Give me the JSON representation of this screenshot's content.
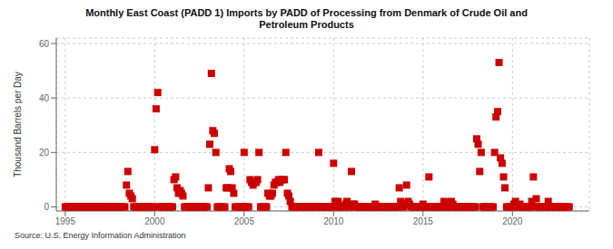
{
  "chart_data": {
    "type": "scatter",
    "title": "Monthly East Coast (PADD 1) Imports by PADD of Processing from Denmark of Crude Oil and\nPetroleum Products",
    "ylabel": "Thousand Barrels per Day",
    "annotation": "Source: U.S. Energy Information Administration",
    "xlim": [
      1994.5,
      2024.3
    ],
    "ylim": [
      -1.5,
      62
    ],
    "yticks": [
      0,
      20,
      40,
      60
    ],
    "xticks": [
      1995,
      2000,
      2005,
      2010,
      2015,
      2020
    ],
    "grid": true,
    "color": "#cc0000",
    "marker": "square",
    "x": [
      1995.0,
      1995.08,
      1995.17,
      1995.25,
      1995.33,
      1995.42,
      1995.5,
      1995.58,
      1995.67,
      1995.75,
      1995.83,
      1995.92,
      1996.0,
      1996.08,
      1996.17,
      1996.25,
      1996.33,
      1996.42,
      1996.5,
      1996.58,
      1996.67,
      1996.75,
      1996.83,
      1996.92,
      1997.0,
      1997.08,
      1997.17,
      1997.25,
      1997.33,
      1997.42,
      1997.5,
      1997.58,
      1997.67,
      1997.75,
      1997.83,
      1997.92,
      1998.0,
      1998.08,
      1998.17,
      1998.25,
      1998.33,
      1998.42,
      1998.5,
      1998.58,
      1998.67,
      1998.75,
      1998.83,
      1998.92,
      1999.0,
      1999.08,
      1999.17,
      1999.25,
      1999.33,
      1999.42,
      1999.5,
      1999.58,
      1999.67,
      1999.75,
      1999.83,
      1999.92,
      2000.0,
      2000.08,
      2000.17,
      2000.25,
      2000.33,
      2000.42,
      2000.5,
      2000.58,
      2000.67,
      2000.75,
      2000.83,
      2000.92,
      2001.0,
      2001.08,
      2001.17,
      2001.25,
      2001.33,
      2001.42,
      2001.5,
      2001.58,
      2001.67,
      2001.75,
      2001.83,
      2001.92,
      2002.0,
      2002.08,
      2002.17,
      2002.25,
      2002.33,
      2002.42,
      2002.5,
      2002.58,
      2002.67,
      2002.75,
      2002.83,
      2002.92,
      2003.0,
      2003.08,
      2003.17,
      2003.25,
      2003.33,
      2003.42,
      2003.5,
      2003.58,
      2003.67,
      2003.75,
      2003.83,
      2003.92,
      2004.0,
      2004.08,
      2004.17,
      2004.25,
      2004.33,
      2004.42,
      2004.5,
      2004.58,
      2004.67,
      2004.75,
      2004.83,
      2004.92,
      2005.0,
      2005.08,
      2005.17,
      2005.25,
      2005.33,
      2005.42,
      2005.5,
      2005.58,
      2005.67,
      2005.75,
      2005.83,
      2005.92,
      2006.0,
      2006.08,
      2006.17,
      2006.25,
      2006.33,
      2006.42,
      2006.5,
      2006.58,
      2006.67,
      2006.75,
      2006.83,
      2006.92,
      2007.0,
      2007.08,
      2007.17,
      2007.25,
      2007.33,
      2007.42,
      2007.5,
      2007.58,
      2007.67,
      2007.75,
      2007.83,
      2007.92,
      2008.0,
      2008.08,
      2008.17,
      2008.25,
      2008.33,
      2008.42,
      2008.5,
      2008.58,
      2008.67,
      2008.75,
      2008.83,
      2008.92,
      2009.0,
      2009.08,
      2009.17,
      2009.25,
      2009.33,
      2009.42,
      2009.5,
      2009.58,
      2009.67,
      2009.75,
      2009.83,
      2009.92,
      2010.0,
      2010.08,
      2010.17,
      2010.25,
      2010.33,
      2010.42,
      2010.5,
      2010.58,
      2010.67,
      2010.75,
      2010.83,
      2010.92,
      2011.0,
      2011.08,
      2011.17,
      2011.25,
      2011.33,
      2011.42,
      2011.5,
      2011.58,
      2011.67,
      2011.75,
      2011.83,
      2011.92,
      2012.0,
      2012.08,
      2012.17,
      2012.25,
      2012.33,
      2012.42,
      2012.5,
      2012.58,
      2012.67,
      2012.75,
      2012.83,
      2012.92,
      2013.0,
      2013.08,
      2013.17,
      2013.25,
      2013.33,
      2013.42,
      2013.5,
      2013.58,
      2013.67,
      2013.75,
      2013.83,
      2013.92,
      2014.0,
      2014.08,
      2014.17,
      2014.25,
      2014.33,
      2014.42,
      2014.5,
      2014.58,
      2014.67,
      2014.75,
      2014.83,
      2014.92,
      2015.0,
      2015.08,
      2015.17,
      2015.25,
      2015.33,
      2015.42,
      2015.5,
      2015.58,
      2015.67,
      2015.75,
      2015.83,
      2015.92,
      2016.0,
      2016.08,
      2016.17,
      2016.25,
      2016.33,
      2016.42,
      2016.5,
      2016.58,
      2016.67,
      2016.75,
      2016.83,
      2016.92,
      2017.0,
      2017.08,
      2017.17,
      2017.25,
      2017.33,
      2017.42,
      2017.5,
      2017.58,
      2017.67,
      2017.75,
      2017.83,
      2017.92,
      2018.0,
      2018.08,
      2018.17,
      2018.25,
      2018.33,
      2018.42,
      2018.5,
      2018.58,
      2018.67,
      2018.75,
      2018.83,
      2018.92,
      2019.0,
      2019.08,
      2019.17,
      2019.25,
      2019.33,
      2019.42,
      2019.5,
      2019.58,
      2019.67,
      2019.75,
      2019.83,
      2019.92,
      2020.0,
      2020.08,
      2020.17,
      2020.25,
      2020.33,
      2020.42,
      2020.5,
      2020.58,
      2020.67,
      2020.75,
      2020.83,
      2020.92,
      2021.0,
      2021.08,
      2021.17,
      2021.25,
      2021.33,
      2021.42,
      2021.5,
      2021.58,
      2021.67,
      2021.75,
      2021.83,
      2021.92,
      2022.0,
      2022.08,
      2022.17,
      2022.25,
      2022.33,
      2022.42,
      2022.5,
      2022.58,
      2022.67,
      2022.75,
      2022.83,
      2022.92,
      2023.0,
      2023.08,
      2023.17
    ],
    "values": [
      0,
      0,
      0,
      0,
      0,
      0,
      0,
      0,
      0,
      0,
      0,
      0,
      0,
      0,
      0,
      0,
      0,
      0,
      0,
      0,
      0,
      0,
      0,
      0,
      0,
      0,
      0,
      0,
      0,
      0,
      0,
      0,
      0,
      0,
      0,
      0,
      0,
      0,
      0,
      0,
      0,
      8,
      13,
      5,
      4,
      3,
      0,
      0,
      0,
      0,
      0,
      0,
      0,
      0,
      0,
      0,
      0,
      0,
      0,
      0,
      21,
      36,
      42,
      0,
      0,
      0,
      0,
      0,
      0,
      0,
      0,
      0,
      0,
      10,
      11,
      7,
      5,
      6,
      5,
      4,
      0,
      0,
      0,
      0,
      0,
      0,
      0,
      0,
      0,
      0,
      0,
      0,
      0,
      0,
      0,
      0,
      7,
      23,
      49,
      28,
      27,
      20,
      0,
      0,
      0,
      0,
      0,
      0,
      7,
      7,
      14,
      13,
      7,
      5,
      0,
      0,
      0,
      0,
      0,
      0,
      20,
      0,
      0,
      0,
      10,
      9,
      8,
      9,
      9,
      10,
      20,
      0,
      0,
      0,
      0,
      0,
      5,
      4,
      4,
      5,
      8,
      9,
      9,
      10,
      9,
      10,
      10,
      10,
      20,
      5,
      4,
      2,
      0,
      0,
      0,
      0,
      0,
      0,
      0,
      0,
      0,
      0,
      0,
      0,
      0,
      0,
      0,
      0,
      0,
      0,
      20,
      0,
      0,
      0,
      0,
      0,
      0,
      0,
      0,
      0,
      16,
      2,
      0,
      2,
      0,
      0,
      0,
      0,
      1,
      2,
      0,
      0,
      13,
      1,
      1,
      0,
      0,
      0,
      0,
      0,
      0,
      0,
      0,
      0,
      0,
      0,
      0,
      0,
      1,
      0,
      0,
      0,
      0,
      0,
      0,
      0,
      0,
      0,
      0,
      0,
      0,
      0,
      0,
      0,
      7,
      2,
      0,
      0,
      1,
      8,
      2,
      1,
      0,
      0,
      0,
      0,
      0,
      0,
      0,
      0,
      1,
      0,
      0,
      0,
      11,
      0,
      0,
      0,
      0,
      0,
      0,
      0,
      0,
      0,
      2,
      1,
      0,
      0,
      0,
      2,
      1,
      0,
      0,
      0,
      0,
      0,
      0,
      0,
      0,
      0,
      0,
      0,
      0,
      0,
      0,
      0,
      25,
      23,
      13,
      20,
      0,
      0,
      0,
      0,
      0,
      0,
      0,
      0,
      20,
      33,
      35,
      53,
      18,
      16,
      11,
      7,
      0,
      0,
      0,
      0,
      0,
      1,
      2,
      0,
      0,
      1,
      0,
      0,
      0,
      0,
      0,
      0,
      0,
      2,
      11,
      0,
      3,
      0,
      0,
      0,
      0,
      0,
      0,
      0,
      2,
      0,
      0,
      0,
      0,
      0,
      0,
      0,
      0,
      0,
      0,
      0,
      0,
      0,
      0
    ]
  }
}
